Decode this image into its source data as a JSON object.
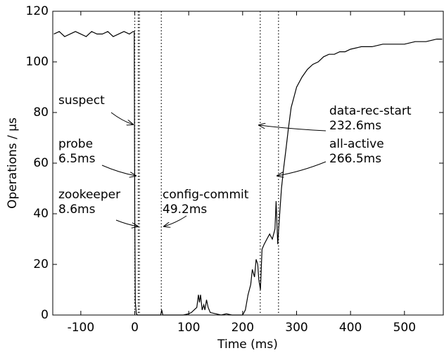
{
  "chart_data": {
    "type": "line",
    "xlabel": "Time (ms)",
    "ylabel": "Operations / μs",
    "xlim": [
      -152,
      572
    ],
    "ylim": [
      0,
      120
    ],
    "xticks": [
      -100,
      0,
      100,
      200,
      300,
      400,
      500
    ],
    "yticks": [
      0,
      20,
      40,
      60,
      80,
      100,
      120
    ],
    "color": "#000000",
    "x": [
      -150,
      -140,
      -130,
      -120,
      -110,
      -100,
      -90,
      -80,
      -70,
      -60,
      -50,
      -40,
      -30,
      -20,
      -10,
      -3,
      -1,
      0,
      1,
      3,
      5,
      10,
      20,
      30,
      40,
      48,
      50,
      52,
      60,
      70,
      80,
      90,
      100,
      105,
      110,
      115,
      118,
      120,
      122,
      125,
      128,
      130,
      133,
      136,
      140,
      150,
      160,
      170,
      180,
      190,
      200,
      205,
      210,
      215,
      218,
      222,
      225,
      228,
      230,
      233,
      236,
      240,
      245,
      250,
      255,
      260,
      262,
      265,
      268,
      272,
      276,
      280,
      285,
      290,
      295,
      300,
      310,
      320,
      330,
      340,
      350,
      360,
      370,
      380,
      390,
      400,
      420,
      440,
      460,
      480,
      500,
      520,
      540,
      560,
      570
    ],
    "y": [
      111,
      112,
      110,
      111,
      112,
      111,
      110,
      112,
      111,
      111,
      112,
      110,
      111,
      112,
      111,
      112,
      112,
      40,
      5,
      0.5,
      0,
      0,
      0,
      0,
      0,
      0,
      2,
      0,
      0,
      0,
      0,
      0,
      0.5,
      1,
      2,
      3,
      8,
      5,
      8,
      2,
      4,
      2,
      6,
      3,
      1,
      0.5,
      0,
      0.5,
      0,
      0,
      0,
      2,
      8,
      12,
      18,
      15,
      22,
      20,
      14,
      10,
      26,
      28,
      30,
      32,
      30,
      34,
      45,
      28,
      38,
      50,
      58,
      65,
      74,
      82,
      86,
      90,
      94,
      97,
      99,
      100,
      102,
      103,
      103,
      104,
      104,
      105,
      106,
      106,
      107,
      107,
      107,
      108,
      108,
      109,
      109
    ],
    "annotations": [
      {
        "name": "suspect",
        "time": 0
      },
      {
        "name": "probe",
        "time_label": "6.5ms",
        "time": 6.5
      },
      {
        "name": "zookeeper",
        "time_label": "8.6ms",
        "time": 8.6
      },
      {
        "name": "config-commit",
        "time_label": "49.2ms",
        "time": 49.2
      },
      {
        "name": "data-rec-start",
        "time_label": "232.6ms",
        "time": 232.6
      },
      {
        "name": "all-active",
        "time_label": "266.5ms",
        "time": 266.5
      }
    ]
  }
}
